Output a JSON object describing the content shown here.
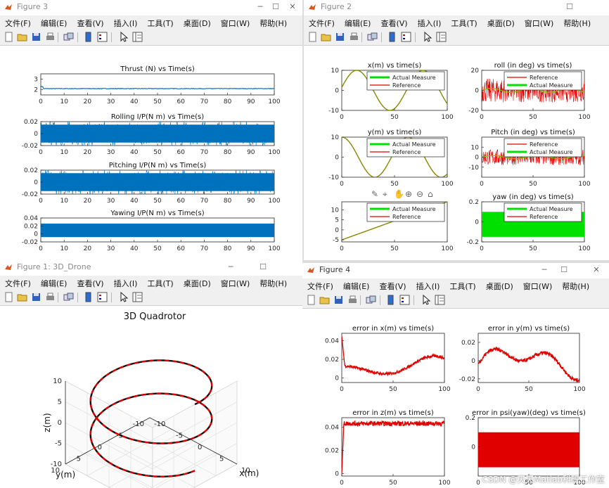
{
  "windows": {
    "fig3": {
      "title": "Figure 3"
    },
    "fig2": {
      "title": "Figure 2"
    },
    "fig1": {
      "title": "Figure 1: 3D_Drone"
    },
    "fig4": {
      "title": "Figure 4"
    }
  },
  "menu": {
    "file": "文件(F)",
    "edit": "编辑(E)",
    "view": "查看(V)",
    "insert": "插入(I)",
    "tools": "工具(T)",
    "desktop": "桌面(D)",
    "window": "窗口(W)",
    "help": "帮助(H)"
  },
  "toolbar_icons": [
    "new-figure-icon",
    "open-folder-icon",
    "save-icon",
    "print-icon",
    "link-plot-icon",
    "colorbar-icon",
    "legend-icon",
    "pointer-icon",
    "property-editor-icon"
  ],
  "axes_toolbar_icons": [
    "brush-icon",
    "data-tips-icon",
    "pan-icon",
    "zoom-in-icon",
    "zoom-out-icon",
    "home-icon"
  ],
  "colors": {
    "matlab_blue": "#0072bd",
    "green": "#00e000",
    "red": "#e00000",
    "olive": "#888800"
  },
  "watermark": "CSDN @天天Matlab科研工作室",
  "chart_data": [
    {
      "id": "fig3-thrust",
      "type": "line",
      "title": "Thrust (N) vs Time(s)",
      "xlim": [
        0,
        100
      ],
      "xticks": [
        0,
        10,
        20,
        30,
        40,
        50,
        60,
        70,
        80,
        90,
        100
      ],
      "ylim": [
        1.5,
        3.5
      ],
      "yticks": [
        2,
        3
      ],
      "series": [
        {
          "color": "#0072bd",
          "values": "constant near 2.1"
        }
      ],
      "constant": 2.1
    },
    {
      "id": "fig3-rolling",
      "type": "line",
      "title": "Rolling I/P(N m) vs Time(s)",
      "xlim": [
        0,
        100
      ],
      "xticks": [
        0,
        10,
        20,
        30,
        40,
        50,
        60,
        70,
        80,
        90,
        100
      ],
      "ylim": [
        -0.02,
        0.02
      ],
      "yticks": [
        0.02,
        0,
        -0.02
      ],
      "noise_amplitude": 0.015
    },
    {
      "id": "fig3-pitching",
      "type": "line",
      "title": "Pitching I/P(N m) vs Time(s)",
      "xlim": [
        0,
        100
      ],
      "xticks": [
        0,
        10,
        20,
        30,
        40,
        50,
        60,
        70,
        80,
        90,
        100
      ],
      "ylim": [
        -0.02,
        0.02
      ],
      "yticks": [
        0.02,
        0,
        -0.02
      ],
      "noise_amplitude": 0.015
    },
    {
      "id": "fig3-yawing",
      "type": "line",
      "title": "Yawing I/P(N m) vs Time(s)",
      "xlim": [
        0,
        100
      ],
      "xticks": [
        0,
        10,
        20,
        30,
        40,
        50,
        60,
        70,
        80,
        90,
        100
      ],
      "ylim": [
        -0.02,
        0.04
      ],
      "yticks": [
        0.04,
        0.02,
        0,
        -0.02
      ],
      "band": [
        -0.008,
        0.026
      ]
    },
    {
      "id": "fig2-x",
      "type": "line",
      "title": "x(m) vs time(s)",
      "xlim": [
        0,
        100
      ],
      "xticks": [
        0,
        50,
        100
      ],
      "ylim": [
        -10,
        10
      ],
      "yticks": [
        10,
        0,
        -10
      ],
      "legend": [
        "Actual Measure",
        "Reference"
      ],
      "legend_colors": [
        "#00e000",
        "#e00000"
      ],
      "amplitude": 10,
      "period": 62.8
    },
    {
      "id": "fig2-roll",
      "type": "line",
      "title": "roll (in deg) vs time(s)",
      "xlim": [
        0,
        100
      ],
      "xticks": [
        0,
        50,
        100
      ],
      "ylim": [
        -20,
        20
      ],
      "yticks": [
        20,
        0,
        -20
      ],
      "legend": [
        "Reference",
        "Actual Measure"
      ],
      "legend_colors": [
        "#e00000",
        "#00e000"
      ],
      "noise_amplitude": 12
    },
    {
      "id": "fig2-y",
      "type": "line",
      "title": "y(m) vs time(s)",
      "xlim": [
        0,
        100
      ],
      "xticks": [
        0,
        50,
        100
      ],
      "ylim": [
        -10,
        10
      ],
      "yticks": [
        10,
        0,
        -10
      ],
      "legend": [
        "Actual Measure",
        "Reference"
      ],
      "legend_colors": [
        "#00e000",
        "#e00000"
      ],
      "amplitude": 10,
      "period": 62.8
    },
    {
      "id": "fig2-pitch",
      "type": "line",
      "title": "Pitch (in deg) vs time(s)",
      "xlim": [
        0,
        100
      ],
      "xticks": [
        0,
        50,
        100
      ],
      "ylim": [
        -20,
        20
      ],
      "yticks": [
        10,
        0,
        -10
      ],
      "legend": [
        "Reference",
        "Actual Measure"
      ],
      "legend_colors": [
        "#e00000",
        "#00e000"
      ],
      "noise_amplitude": 8
    },
    {
      "id": "fig2-z",
      "type": "line",
      "title": "",
      "xlim": [
        0,
        100
      ],
      "xticks": [
        0,
        50,
        100
      ],
      "ylim": [
        -6,
        14
      ],
      "yticks": [
        10,
        5,
        0,
        -5
      ],
      "legend": [
        "Actual Measure",
        "Reference"
      ],
      "legend_colors": [
        "#00e000",
        "#e00000"
      ],
      "start": -5,
      "end": 14
    },
    {
      "id": "fig2-yaw",
      "type": "area",
      "title": "yaw (in deg) vs time(s)",
      "xlim": [
        0,
        100
      ],
      "xticks": [
        0,
        50,
        100
      ],
      "ylim": [
        -0.2,
        0.2
      ],
      "yticks": [
        0.2,
        0,
        -0.2
      ],
      "legend": [
        "Actual Measure",
        "Reference"
      ],
      "legend_colors": [
        "#00e000",
        "#e00000"
      ],
      "band": [
        -0.15,
        0.1
      ]
    },
    {
      "id": "fig4-ex",
      "type": "line",
      "title": "error in x(m) vs time(s)",
      "xlim": [
        0,
        100
      ],
      "xticks": [
        0,
        50,
        100
      ],
      "ylim": [
        -0.005,
        0.048
      ],
      "yticks": [
        0.04,
        0.02,
        0
      ],
      "start_spike": 0.045,
      "baseline": 0.01
    },
    {
      "id": "fig4-ey",
      "type": "line",
      "title": "error in y(m) vs time(s)",
      "xlim": [
        0,
        100
      ],
      "xticks": [
        0,
        50,
        100
      ],
      "ylim": [
        -0.024,
        0.03
      ],
      "yticks": [
        0.02,
        0,
        -0.02
      ],
      "peak": 0.028,
      "trough": -0.02
    },
    {
      "id": "fig4-ez",
      "type": "line",
      "title": "error in z(m) vs time(s)",
      "xlim": [
        0,
        100
      ],
      "xticks": [
        0,
        50,
        100
      ],
      "ylim": [
        -0.002,
        0.048
      ],
      "yticks": [
        0.04,
        0.02,
        0
      ],
      "plateau": 0.043
    },
    {
      "id": "fig4-epsi",
      "type": "area",
      "title": "error in psi(yaw)(deg) vs time(s)",
      "xlim": [
        0,
        100
      ],
      "xticks": [
        0,
        50,
        100
      ],
      "ylim": [
        -0.2,
        0.2
      ],
      "yticks": [
        0.2,
        0
      ],
      "band": [
        -0.14,
        0.1
      ]
    },
    {
      "id": "fig1-3d",
      "type": "line",
      "title": "3D  Quadrotor",
      "xlabel": "x(m)",
      "ylabel": "y(m)",
      "zlabel": "z(m)",
      "xticks": [
        -10,
        -5,
        0,
        5,
        10
      ],
      "yticks": [
        -10,
        -5,
        0,
        5,
        10
      ],
      "zticks": [
        -10,
        -5,
        0,
        5,
        10
      ],
      "series_style": "helix, red dashed over black",
      "radius": 10,
      "z_range": [
        -6,
        10
      ]
    }
  ]
}
